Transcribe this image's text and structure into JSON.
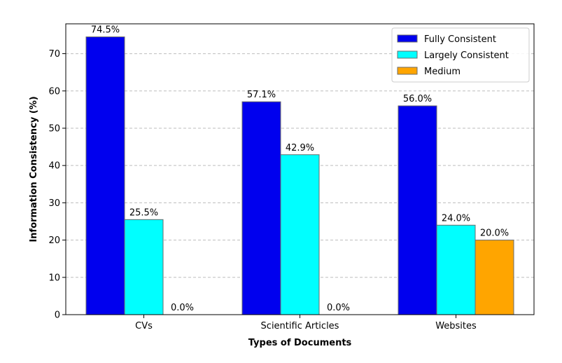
{
  "chart_data": {
    "type": "bar",
    "title": "",
    "xlabel": "Types of Documents",
    "ylabel": "Information Consistency (%)",
    "categories": [
      "CVs",
      "Scientific Articles",
      "Websites"
    ],
    "series": [
      {
        "name": "Fully Consistent",
        "color": "#0000ee",
        "values": [
          74.5,
          57.1,
          56.0
        ],
        "labels": [
          "74.5%",
          "57.1%",
          "56.0%"
        ]
      },
      {
        "name": "Largely Consistent",
        "color": "#00ffff",
        "values": [
          25.5,
          42.9,
          24.0
        ],
        "labels": [
          "25.5%",
          "42.9%",
          "24.0%"
        ]
      },
      {
        "name": "Medium",
        "color": "#ffa500",
        "values": [
          0.0,
          0.0,
          20.0
        ],
        "labels": [
          "0.0%",
          "0.0%",
          "20.0%"
        ]
      }
    ],
    "ylim": [
      0,
      78
    ],
    "yticks": [
      0,
      10,
      20,
      30,
      40,
      50,
      60,
      70
    ],
    "ytick_labels": [
      "0",
      "10",
      "20",
      "30",
      "40",
      "50",
      "60",
      "70"
    ],
    "grid": "y-dashed",
    "legend_position": "top-right"
  }
}
